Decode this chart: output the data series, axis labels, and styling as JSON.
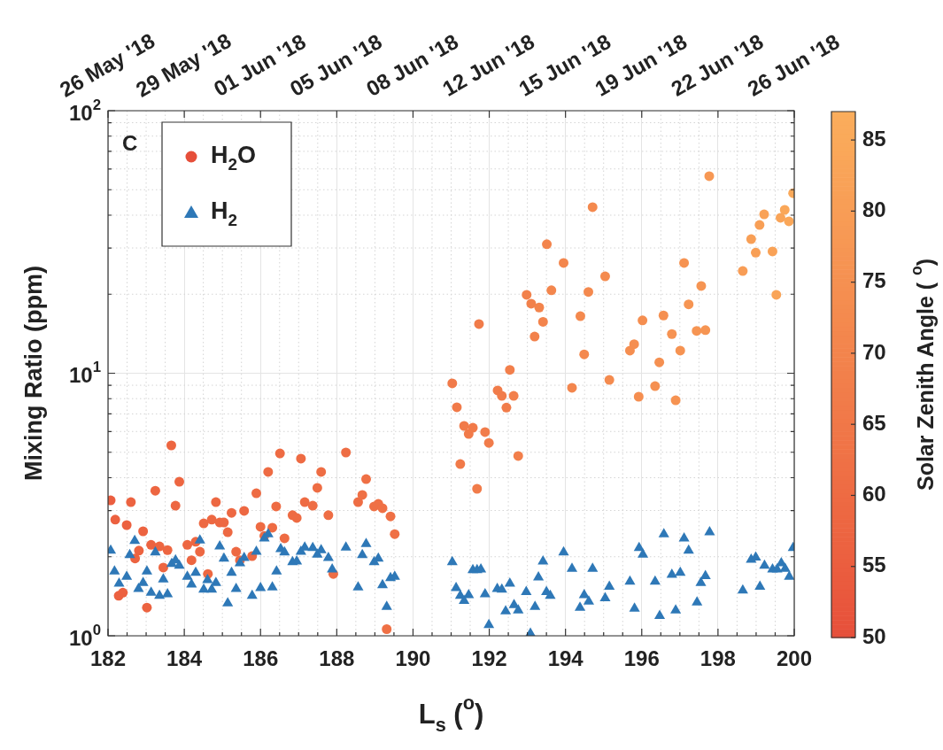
{
  "chart_data": {
    "type": "scatter",
    "xlabel": "L$_{s}$ ($^{o}$)",
    "ylabel": "Mixing Ratio (ppm)",
    "clabel": "Solar Zenith Angle ( $^{o}$)",
    "annotations": [
      "C"
    ],
    "xlim": [
      182,
      200
    ],
    "xticks": [
      182,
      184,
      186,
      188,
      190,
      192,
      194,
      196,
      198,
      200
    ],
    "x2lim": [
      "2018-05-26T00:00",
      "2018-06-26T00:00"
    ],
    "x2ticks": [
      {
        "value": "2018-05-26T00:00",
        "label": "26 May '18"
      },
      {
        "value": "2018-05-29T10:40",
        "label": "29 May '18"
      },
      {
        "value": "2018-06-01T21:20",
        "label": "01 Jun '18"
      },
      {
        "value": "2018-06-05T08:00",
        "label": "05 Jun '18"
      },
      {
        "value": "2018-06-08T18:40",
        "label": "08 Jun '18"
      },
      {
        "value": "2018-06-12T05:20",
        "label": "12 Jun '18"
      },
      {
        "value": "2018-06-15T16:00",
        "label": "15 Jun '18"
      },
      {
        "value": "2018-06-19T02:40",
        "label": "19 Jun '18"
      },
      {
        "value": "2018-06-22T13:20",
        "label": "22 Jun '18"
      },
      {
        "value": "2018-06-26T00:00",
        "label": "26 Jun '18"
      }
    ],
    "ylim": [
      1,
      100
    ],
    "yticks": [
      {
        "value": 1,
        "label": "10$^{0}$"
      },
      {
        "value": 10,
        "label": "10$^{1}$"
      },
      {
        "value": 100,
        "label": "10$^{2}$"
      }
    ],
    "log": "y",
    "grid": true,
    "legend": "top left",
    "clim": [
      50,
      87
    ],
    "cticks": [
      50,
      55,
      60,
      65,
      70,
      75,
      80,
      85
    ],
    "series": [
      {
        "name": "H$_{2}$O",
        "marker": "circle",
        "colors": [
          "#eb5e3f",
          "#ec6140",
          "#ec6140",
          "#ec6140",
          "#ec6140",
          "#ec6340",
          "#ec6340",
          "#ec6340",
          "#ec6340",
          "#ec6340",
          "#ec6340",
          "#ed6641",
          "#ed6641",
          "#ed6641",
          "#ed6641",
          "#ed6641",
          "#ed6641",
          "#ed6641",
          "#ed6641",
          "#ed6641",
          "#ed6641",
          "#ed6842",
          "#ed6842",
          "#ed6842",
          "#ed6842",
          "#ed6842",
          "#ed6842",
          "#ed6842",
          "#ed6842",
          "#ed6842",
          "#ed6842",
          "#ed6842",
          "#ed6842",
          "#ed6842",
          "#ee6b43",
          "#ee6b43",
          "#ee6b43",
          "#ee6b43",
          "#ee6b43",
          "#ee6b43",
          "#ee6b43",
          "#ee6b43",
          "#ee6b43",
          "#ee6b43",
          "#ee6b43",
          "#ee6b43",
          "#ee6d44",
          "#ee6d44",
          "#ee6d44",
          "#ee6d44",
          "#ee6d44",
          "#ee6d44",
          "#ee6d44",
          "#ef7045",
          "#ef7045",
          "#ef7045",
          "#ef7045",
          "#ef7045",
          "#ef7045",
          "#ef7045",
          "#ef7045",
          "#f17a49",
          "#f17a49",
          "#f17a49",
          "#f17a49",
          "#f17a49",
          "#f17a49",
          "#f17c4a",
          "#f17c4a",
          "#f17c4a",
          "#f17c4a",
          "#f17c4a",
          "#f17c4a",
          "#f17c4a",
          "#f27f4b",
          "#f27f4b",
          "#f27f4b",
          "#f2814b",
          "#f2814b",
          "#f2814b",
          "#f3844c",
          "#f3844c",
          "#f3844c",
          "#f3864d",
          "#f3864d",
          "#f3864d",
          "#f4894e",
          "#f4894e",
          "#f4894e",
          "#f4894e",
          "#f48b4f",
          "#f48b4f",
          "#f58e50",
          "#f58e50",
          "#f58e50",
          "#f58e50",
          "#f59051",
          "#f59051",
          "#f59051",
          "#f69352",
          "#f69352",
          "#f69352",
          "#f69352",
          "#f69553",
          "#f69553",
          "#f69553",
          "#f69553",
          "#f79854",
          "#f89d56",
          "#f89f56",
          "#f89f56",
          "#f89f56",
          "#f9a257",
          "#f9a257",
          "#f9a458",
          "#f9a458",
          "#faa759",
          "#faa759",
          "#faa95a"
        ],
        "x": [
          182.07,
          182.19,
          182.28,
          182.39,
          182.49,
          182.6,
          182.71,
          182.81,
          182.92,
          183.02,
          183.13,
          183.24,
          183.35,
          183.45,
          183.56,
          183.66,
          183.77,
          183.87,
          184.08,
          184.19,
          184.3,
          184.41,
          184.51,
          184.62,
          184.72,
          184.83,
          184.93,
          185.04,
          185.14,
          185.24,
          185.36,
          185.46,
          185.57,
          185.78,
          185.89,
          186.0,
          186.1,
          186.2,
          186.31,
          186.41,
          186.51,
          186.63,
          186.84,
          186.95,
          187.06,
          187.16,
          187.37,
          187.49,
          187.59,
          187.78,
          187.91,
          188.24,
          188.56,
          188.67,
          188.77,
          188.98,
          189.09,
          189.2,
          189.31,
          189.41,
          189.52,
          191.03,
          191.15,
          191.24,
          191.34,
          191.46,
          191.57,
          191.68,
          191.73,
          191.89,
          191.99,
          192.22,
          192.33,
          192.45,
          192.54,
          192.64,
          192.76,
          192.98,
          193.1,
          193.19,
          193.31,
          193.41,
          193.51,
          193.63,
          193.95,
          194.17,
          194.39,
          194.49,
          194.6,
          194.71,
          195.04,
          195.15,
          195.69,
          195.8,
          195.92,
          196.02,
          196.35,
          196.46,
          196.57,
          196.79,
          196.89,
          197.01,
          197.11,
          197.23,
          197.44,
          197.56,
          197.67,
          197.77,
          198.65,
          198.87,
          198.99,
          199.09,
          199.21,
          199.43,
          199.53,
          199.64,
          199.75,
          199.86,
          199.97
        ],
        "values": [
          3.28,
          2.77,
          1.42,
          1.46,
          2.64,
          3.23,
          1.97,
          2.11,
          2.5,
          1.28,
          2.22,
          3.57,
          2.19,
          1.82,
          2.12,
          5.31,
          3.13,
          3.86,
          2.22,
          1.94,
          2.28,
          2.09,
          2.68,
          1.72,
          2.77,
          3.23,
          2.7,
          2.7,
          2.48,
          2.94,
          2.09,
          1.94,
          2.99,
          2.01,
          3.49,
          2.6,
          2.4,
          4.21,
          2.58,
          3.11,
          4.95,
          2.35,
          2.88,
          2.81,
          4.73,
          3.23,
          3.13,
          3.66,
          4.21,
          2.88,
          1.72,
          4.99,
          3.23,
          3.44,
          3.95,
          3.11,
          3.18,
          3.06,
          1.06,
          2.85,
          2.44,
          9.15,
          7.42,
          4.51,
          6.3,
          5.87,
          6.2,
          3.63,
          15.4,
          5.97,
          5.43,
          8.6,
          8.2,
          7.4,
          10.3,
          8.2,
          4.84,
          19.9,
          18.4,
          13.8,
          17.8,
          15.7,
          31,
          20.7,
          26.3,
          8.8,
          16.5,
          11.8,
          20.4,
          42.9,
          23.4,
          9.43,
          12.2,
          12.9,
          8.14,
          15.9,
          8.93,
          11.0,
          16.6,
          14.1,
          7.89,
          12.2,
          26.3,
          18.3,
          14.5,
          21.5,
          14.6,
          56.3,
          24.5,
          32.4,
          28.8,
          36.7,
          40.3,
          29.1,
          19.9,
          39.1,
          41.9,
          37.9,
          48.5
        ],
        "cvalues": [
          55,
          56,
          56,
          56,
          56,
          57,
          57,
          57,
          57,
          57,
          57,
          58,
          58,
          58,
          58,
          58,
          58,
          58,
          58,
          58,
          58,
          59,
          59,
          59,
          59,
          59,
          59,
          59,
          59,
          59,
          59,
          59,
          59,
          59,
          60,
          60,
          60,
          60,
          60,
          60,
          60,
          60,
          60,
          60,
          60,
          60,
          61,
          61,
          61,
          61,
          61,
          61,
          61,
          62,
          62,
          62,
          62,
          62,
          62,
          62,
          62,
          66,
          66,
          66,
          66,
          66,
          66,
          67,
          67,
          67,
          67,
          67,
          67,
          67,
          68,
          68,
          68,
          69,
          69,
          69,
          70,
          70,
          70,
          71,
          71,
          71,
          72,
          72,
          72,
          72,
          73,
          73,
          74,
          74,
          74,
          74,
          75,
          75,
          75,
          76,
          76,
          76,
          76,
          77,
          77,
          77,
          77,
          78,
          80,
          81,
          81,
          81,
          82,
          82,
          83,
          83,
          84,
          84,
          85
        ]
      },
      {
        "name": "H$_{2}$",
        "color": "#2e78b7",
        "marker": "triangle",
        "x": [
          182.07,
          182.17,
          182.29,
          182.49,
          182.57,
          182.7,
          182.8,
          182.92,
          183.02,
          183.13,
          183.24,
          183.35,
          183.45,
          183.56,
          183.67,
          183.77,
          183.87,
          184.08,
          184.19,
          184.3,
          184.41,
          184.51,
          184.61,
          184.72,
          184.83,
          184.93,
          185.04,
          185.14,
          185.24,
          185.36,
          185.46,
          185.57,
          185.78,
          185.89,
          186.0,
          186.1,
          186.2,
          186.31,
          186.42,
          186.53,
          186.63,
          186.84,
          186.95,
          187.06,
          187.16,
          187.37,
          187.49,
          187.59,
          187.78,
          187.88,
          188.24,
          188.56,
          188.67,
          188.77,
          188.98,
          189.09,
          189.2,
          189.31,
          189.41,
          189.52,
          191.03,
          191.13,
          191.24,
          191.34,
          191.46,
          191.57,
          191.68,
          191.78,
          191.89,
          191.99,
          192.21,
          192.33,
          192.43,
          192.54,
          192.65,
          192.76,
          192.97,
          193.08,
          193.2,
          193.29,
          193.41,
          193.5,
          193.6,
          193.95,
          194.17,
          194.38,
          194.49,
          194.61,
          194.71,
          195.04,
          195.15,
          195.69,
          195.81,
          195.93,
          196.03,
          196.35,
          196.47,
          196.58,
          196.79,
          196.89,
          197.01,
          197.11,
          197.23,
          197.45,
          197.55,
          197.67,
          197.78,
          198.65,
          198.87,
          198.99,
          199.1,
          199.22,
          199.43,
          199.55,
          199.66,
          199.76,
          199.87,
          199.97
        ],
        "values": [
          2.11,
          1.76,
          1.58,
          1.68,
          2.03,
          2.3,
          1.51,
          1.59,
          1.76,
          1.46,
          2.08,
          1.42,
          1.64,
          1.44,
          1.88,
          1.94,
          1.85,
          1.68,
          1.57,
          1.74,
          2.31,
          1.5,
          1.63,
          1.5,
          1.59,
          2.19,
          1.97,
          1.33,
          1.74,
          1.51,
          1.89,
          1.98,
          1.42,
          2.09,
          1.52,
          2.35,
          2.44,
          1.53,
          1.76,
          2.14,
          2.08,
          1.91,
          1.92,
          2.09,
          2.17,
          2.16,
          2.04,
          2.12,
          1.98,
          1.79,
          2.17,
          1.53,
          2.03,
          2.24,
          1.91,
          1.97,
          1.56,
          1.29,
          1.66,
          1.68,
          1.91,
          1.52,
          1.42,
          1.36,
          1.43,
          1.78,
          1.78,
          1.79,
          1.44,
          1.1,
          1.51,
          1.5,
          1.24,
          1.58,
          1.31,
          1.25,
          1.47,
          1.02,
          1.29,
          1.67,
          1.92,
          1.47,
          1.42,
          2.08,
          1.8,
          1.28,
          1.43,
          1.35,
          1.8,
          1.39,
          1.54,
          1.61,
          1.27,
          2.16,
          2.04,
          1.61,
          1.19,
          2.44,
          1.71,
          1.25,
          1.74,
          2.35,
          2.11,
          1.34,
          1.59,
          1.69,
          2.48,
          1.49,
          1.95,
          1.99,
          1.54,
          1.85,
          1.79,
          1.79,
          1.89,
          1.8,
          1.68,
          2.16
        ]
      }
    ]
  }
}
